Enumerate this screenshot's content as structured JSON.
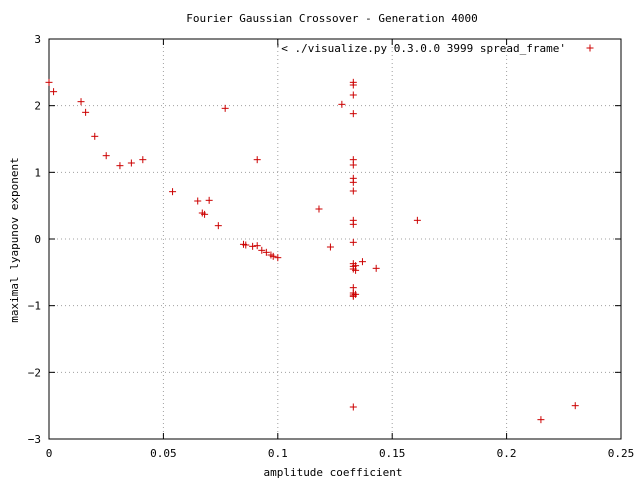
{
  "chart_data": {
    "type": "scatter",
    "title": "Fourier Gaussian Crossover - Generation 4000",
    "xlabel": "amplitude coefficient",
    "ylabel": "maximal lyapunov exponent",
    "xlim": [
      0,
      0.25
    ],
    "ylim": [
      -3,
      3
    ],
    "xticks": [
      0,
      0.05,
      0.1,
      0.15,
      0.2,
      0.25
    ],
    "xtick_labels": [
      "0",
      "0.05",
      "0.1",
      "0.15",
      "0.2",
      "0.25"
    ],
    "yticks": [
      -3,
      -2,
      -1,
      0,
      1,
      2,
      3
    ],
    "ytick_labels": [
      "−3",
      "−2",
      "−1",
      "0",
      "1",
      "2",
      "3"
    ],
    "grid": true,
    "legend_position": "top-right",
    "marker_color": "#cc0000",
    "series": [
      {
        "name": "'< ./visualize.py 0.3.0.0 3999 spread_frame'",
        "points": [
          [
            0.0,
            2.35
          ],
          [
            0.002,
            2.21
          ],
          [
            0.014,
            2.06
          ],
          [
            0.016,
            1.9
          ],
          [
            0.02,
            1.54
          ],
          [
            0.025,
            1.25
          ],
          [
            0.031,
            1.1
          ],
          [
            0.036,
            1.14
          ],
          [
            0.041,
            1.19
          ],
          [
            0.054,
            0.71
          ],
          [
            0.065,
            0.57
          ],
          [
            0.067,
            0.39
          ],
          [
            0.068,
            0.37
          ],
          [
            0.07,
            0.58
          ],
          [
            0.074,
            0.2
          ],
          [
            0.077,
            1.96
          ],
          [
            0.085,
            -0.08
          ],
          [
            0.086,
            -0.09
          ],
          [
            0.089,
            -0.11
          ],
          [
            0.091,
            -0.1
          ],
          [
            0.091,
            1.19
          ],
          [
            0.093,
            -0.17
          ],
          [
            0.095,
            -0.2
          ],
          [
            0.097,
            -0.24
          ],
          [
            0.098,
            -0.26
          ],
          [
            0.1,
            -0.28
          ],
          [
            0.118,
            0.45
          ],
          [
            0.123,
            -0.12
          ],
          [
            0.128,
            2.02
          ],
          [
            0.133,
            2.35
          ],
          [
            0.133,
            2.31
          ],
          [
            0.133,
            2.16
          ],
          [
            0.133,
            1.88
          ],
          [
            0.133,
            1.19
          ],
          [
            0.133,
            1.11
          ],
          [
            0.133,
            0.91
          ],
          [
            0.133,
            0.85
          ],
          [
            0.133,
            0.72
          ],
          [
            0.133,
            0.28
          ],
          [
            0.133,
            0.22
          ],
          [
            0.133,
            -0.05
          ],
          [
            0.133,
            -0.37
          ],
          [
            0.133,
            -0.41
          ],
          [
            0.133,
            -0.45
          ],
          [
            0.133,
            -0.73
          ],
          [
            0.133,
            -0.81
          ],
          [
            0.133,
            -0.84
          ],
          [
            0.133,
            -0.86
          ],
          [
            0.134,
            -0.4
          ],
          [
            0.134,
            -0.47
          ],
          [
            0.134,
            -0.83
          ],
          [
            0.133,
            -2.52
          ],
          [
            0.137,
            -0.34
          ],
          [
            0.143,
            -0.44
          ],
          [
            0.161,
            0.28
          ],
          [
            0.215,
            -2.71
          ],
          [
            0.23,
            -2.5
          ]
        ]
      }
    ]
  }
}
